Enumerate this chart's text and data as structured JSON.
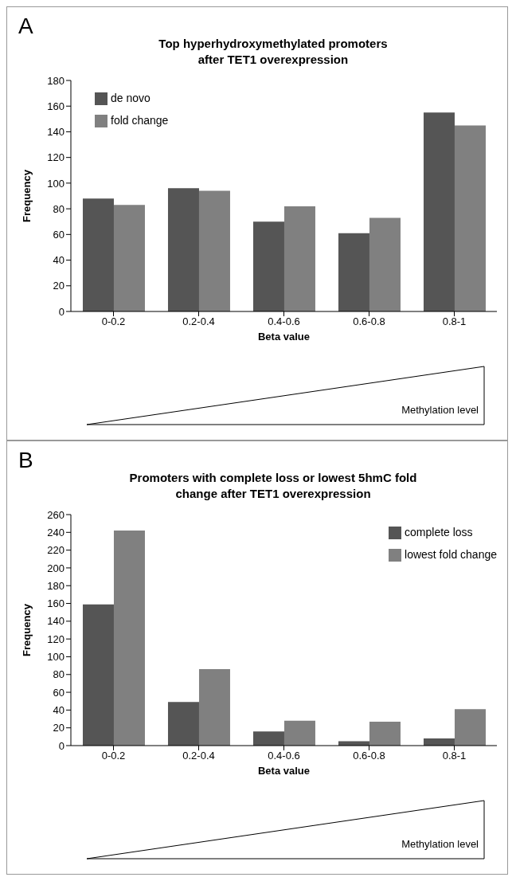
{
  "chart_data": [
    {
      "type": "bar",
      "title": "Top hyperhydroxymethylated promoters\nafter TET1 overexpression",
      "xlabel": "Beta value",
      "ylabel": "Frequency",
      "categories": [
        "0-0.2",
        "0.2-0.4",
        "0.4-0.6",
        "0.6-0.8",
        "0.8-1"
      ],
      "series": [
        {
          "name": "de novo",
          "color": "#555555",
          "values": [
            88,
            96,
            70,
            61,
            155
          ]
        },
        {
          "name": "fold change",
          "color": "#808080",
          "values": [
            83,
            94,
            82,
            73,
            145
          ]
        }
      ],
      "ylim": [
        0,
        180
      ],
      "yticks": [
        0,
        20,
        40,
        60,
        80,
        100,
        120,
        140,
        160,
        180
      ],
      "grid": false,
      "legend": "top left",
      "annotations": [
        "A",
        "Methylation level"
      ]
    },
    {
      "type": "bar",
      "title": "Promoters with complete loss or lowest 5hmC fold\nchange after TET1 overexpression",
      "xlabel": "Beta value",
      "ylabel": "Frequency",
      "categories": [
        "0-0.2",
        "0.2-0.4",
        "0.4-0.6",
        "0.6-0.8",
        "0.8-1"
      ],
      "series": [
        {
          "name": "complete loss",
          "color": "#555555",
          "values": [
            159,
            49,
            16,
            5,
            8
          ]
        },
        {
          "name": "lowest fold change",
          "color": "#808080",
          "values": [
            242,
            86,
            28,
            27,
            41
          ]
        }
      ],
      "ylim": [
        0,
        260
      ],
      "yticks": [
        0,
        20,
        40,
        60,
        80,
        100,
        120,
        140,
        160,
        180,
        200,
        220,
        240,
        260
      ],
      "grid": false,
      "legend": "top right",
      "annotations": [
        "B",
        "Methylation level"
      ]
    }
  ]
}
